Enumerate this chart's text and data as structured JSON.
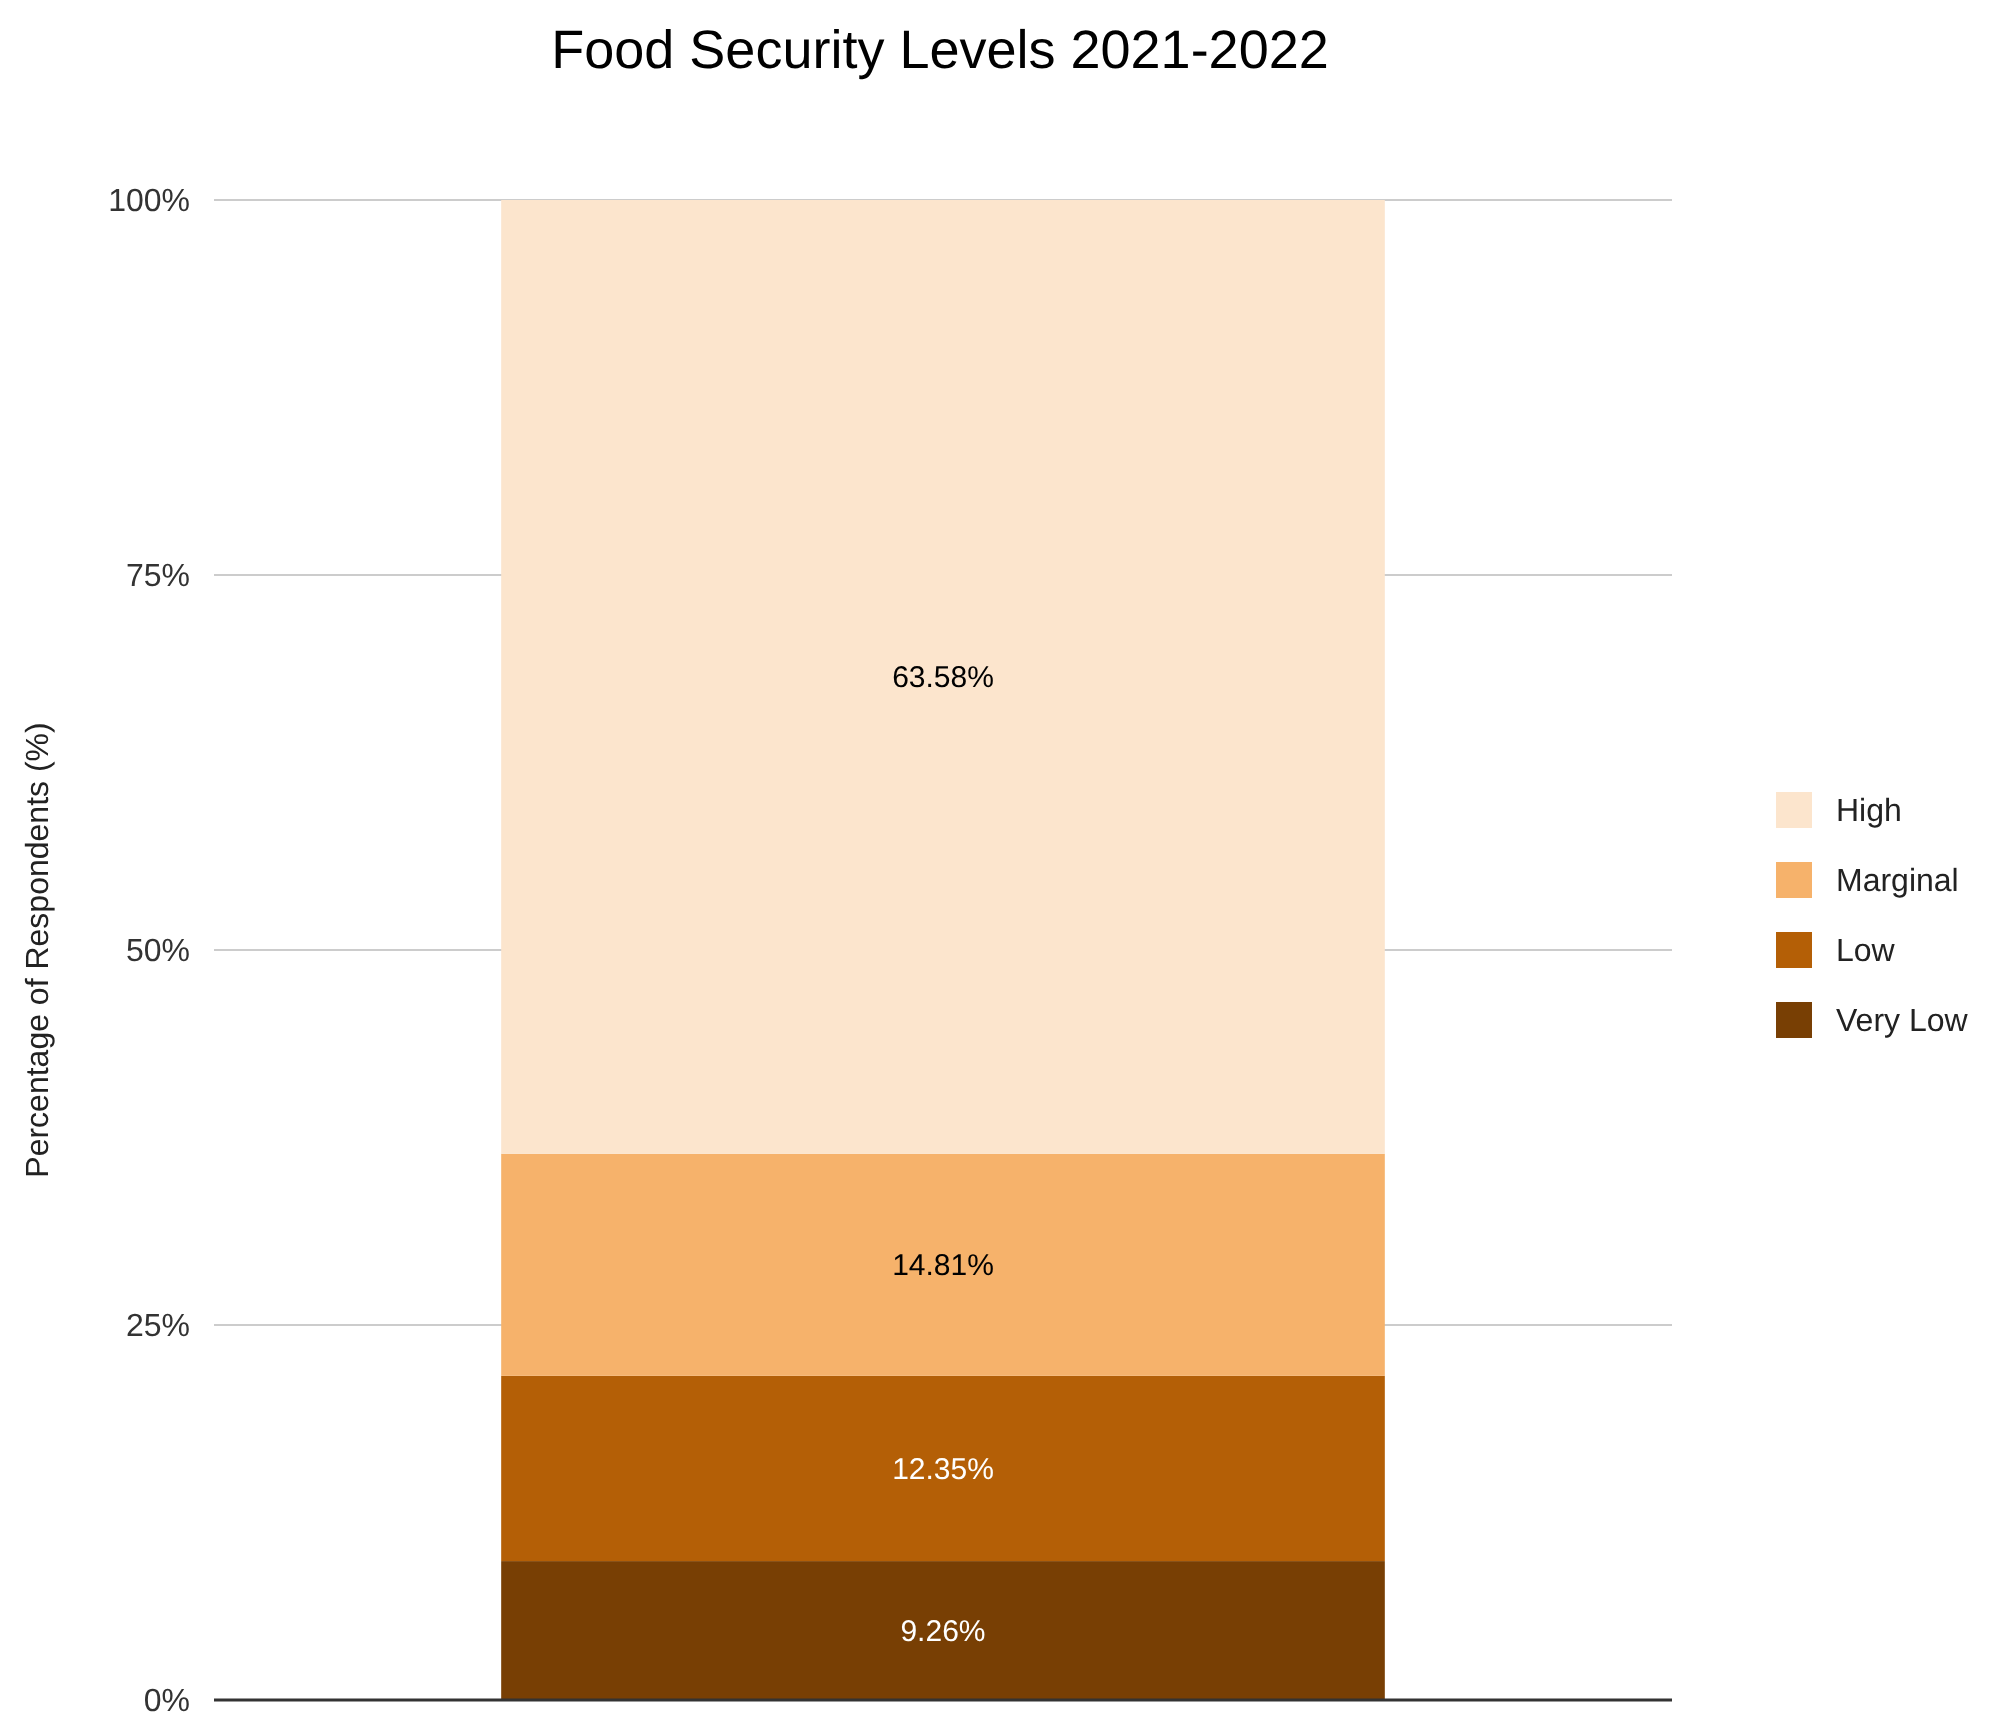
{
  "chart_data": {
    "type": "bar",
    "title": "Food Security Levels 2021-2022",
    "ylabel": "Percentage of Respondents (%)",
    "categories": [
      null
    ],
    "stacked": true,
    "series": [
      {
        "name": "Very Low",
        "color": "#783f04",
        "values": [
          9.26
        ],
        "value_labels": [
          "9.26%"
        ]
      },
      {
        "name": "Low",
        "color": "#b45f06",
        "values": [
          12.35
        ],
        "value_labels": [
          "12.35%"
        ]
      },
      {
        "name": "Marginal",
        "color": "#f6b26b",
        "values": [
          14.81
        ],
        "value_labels": [
          "14.81%"
        ]
      },
      {
        "name": "High",
        "color": "#fce5cd",
        "values": [
          63.58
        ],
        "value_labels": [
          "63.58%"
        ]
      }
    ],
    "ylim": [
      0,
      100
    ],
    "yticks": [
      {
        "value": 0,
        "label": "0%"
      },
      {
        "value": 25,
        "label": "25%"
      },
      {
        "value": 50,
        "label": "50%"
      },
      {
        "value": 75,
        "label": "75%"
      },
      {
        "value": 100,
        "label": "100%"
      }
    ],
    "grid": "y",
    "legend": "right"
  }
}
